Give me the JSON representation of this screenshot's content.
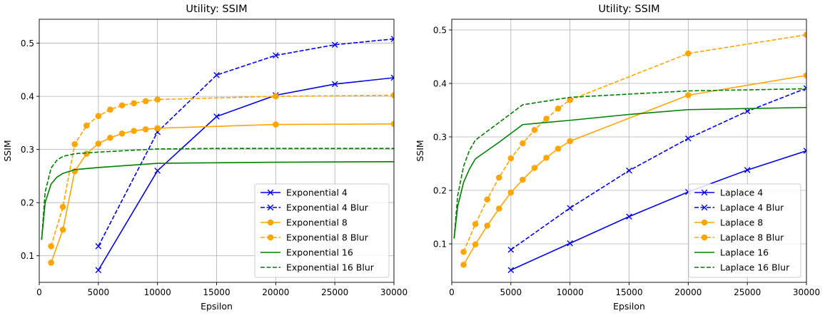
{
  "chart_data": [
    {
      "type": "line",
      "title": "Utility: SSIM",
      "xlabel": "Epsilon",
      "ylabel": "SSIM",
      "xlim": [
        0,
        30000
      ],
      "ylim": [
        0.05,
        0.545
      ],
      "xticks": [
        0,
        5000,
        10000,
        15000,
        20000,
        25000,
        30000
      ],
      "yticks": [
        0.1,
        0.2,
        0.3,
        0.4,
        0.5
      ],
      "grid": true,
      "legend_position": "lower-right",
      "series": [
        {
          "name": "Exponential 4",
          "color": "#0000ee",
          "dash": false,
          "marker": "x",
          "x": [
            5000,
            10000,
            15000,
            20000,
            25000,
            30000
          ],
          "y": [
            0.073,
            0.26,
            0.362,
            0.402,
            0.423,
            0.435
          ]
        },
        {
          "name": "Exponential 4 Blur",
          "color": "#0000ee",
          "dash": true,
          "marker": "x",
          "x": [
            5000,
            10000,
            15000,
            20000,
            25000,
            30000
          ],
          "y": [
            0.118,
            0.333,
            0.44,
            0.477,
            0.497,
            0.508
          ]
        },
        {
          "name": "Exponential 8",
          "color": "#ffa500",
          "dash": false,
          "marker": "o",
          "x": [
            1000,
            2000,
            3000,
            4000,
            5000,
            6000,
            7000,
            8000,
            9000,
            10000,
            20000,
            30000
          ],
          "y": [
            0.087,
            0.149,
            0.259,
            0.292,
            0.311,
            0.322,
            0.33,
            0.335,
            0.338,
            0.34,
            0.347,
            0.348
          ]
        },
        {
          "name": "Exponential 8 Blur",
          "color": "#ffa500",
          "dash": true,
          "marker": "o",
          "x": [
            1000,
            2000,
            3000,
            4000,
            5000,
            6000,
            7000,
            8000,
            9000,
            10000,
            20000,
            30000
          ],
          "y": [
            0.118,
            0.192,
            0.31,
            0.345,
            0.363,
            0.375,
            0.383,
            0.387,
            0.391,
            0.394,
            0.4,
            0.402
          ]
        },
        {
          "name": "Exponential 16",
          "color": "#008000",
          "dash": false,
          "marker": "none",
          "x": [
            200,
            500,
            1000,
            1500,
            2000,
            3000,
            5000,
            10000,
            15000,
            20000,
            30000
          ],
          "y": [
            0.13,
            0.2,
            0.235,
            0.248,
            0.255,
            0.262,
            0.266,
            0.274,
            0.275,
            0.276,
            0.277
          ]
        },
        {
          "name": "Exponential 16 Blur",
          "color": "#008000",
          "dash": true,
          "marker": "none",
          "x": [
            200,
            500,
            1000,
            1500,
            2000,
            3000,
            5000,
            10000,
            15000,
            20000,
            30000
          ],
          "y": [
            0.13,
            0.22,
            0.265,
            0.28,
            0.287,
            0.292,
            0.295,
            0.301,
            0.302,
            0.302,
            0.302
          ]
        }
      ]
    },
    {
      "type": "line",
      "title": "Utility: SSIM",
      "xlabel": "Epsilon",
      "ylabel": "SSIM",
      "xlim": [
        0,
        30000
      ],
      "ylim": [
        0.028,
        0.52
      ],
      "xticks": [
        0,
        5000,
        10000,
        15000,
        20000,
        25000,
        30000
      ],
      "yticks": [
        0.1,
        0.2,
        0.3,
        0.4,
        0.5
      ],
      "grid": true,
      "legend_position": "lower-right",
      "series": [
        {
          "name": "Laplace 4",
          "color": "#0000ee",
          "dash": false,
          "marker": "x",
          "x": [
            5000,
            10000,
            15000,
            20000,
            25000,
            30000
          ],
          "y": [
            0.051,
            0.101,
            0.151,
            0.197,
            0.238,
            0.274
          ]
        },
        {
          "name": "Laplace 4 Blur",
          "color": "#0000ee",
          "dash": true,
          "marker": "x",
          "x": [
            5000,
            10000,
            15000,
            20000,
            25000,
            30000
          ],
          "y": [
            0.089,
            0.167,
            0.237,
            0.297,
            0.348,
            0.391
          ]
        },
        {
          "name": "Laplace 8",
          "color": "#ffa500",
          "dash": false,
          "marker": "o",
          "x": [
            1000,
            2000,
            3000,
            4000,
            5000,
            6000,
            7000,
            8000,
            9000,
            10000,
            20000,
            30000
          ],
          "y": [
            0.061,
            0.099,
            0.134,
            0.166,
            0.196,
            0.22,
            0.242,
            0.261,
            0.278,
            0.292,
            0.378,
            0.415
          ]
        },
        {
          "name": "Laplace 8 Blur",
          "color": "#ffa500",
          "dash": true,
          "marker": "o",
          "x": [
            1000,
            2000,
            3000,
            4000,
            5000,
            6000,
            7000,
            8000,
            9000,
            10000,
            20000,
            30000
          ],
          "y": [
            0.085,
            0.137,
            0.183,
            0.224,
            0.26,
            0.288,
            0.313,
            0.334,
            0.353,
            0.369,
            0.456,
            0.491
          ]
        },
        {
          "name": "Laplace 16",
          "color": "#008000",
          "dash": false,
          "marker": "none",
          "x": [
            200,
            500,
            1000,
            1500,
            2000,
            4000,
            6000,
            10000,
            15000,
            20000,
            30000
          ],
          "y": [
            0.11,
            0.17,
            0.215,
            0.24,
            0.259,
            0.29,
            0.323,
            0.331,
            0.342,
            0.351,
            0.355
          ]
        },
        {
          "name": "Laplace 16 Blur",
          "color": "#008000",
          "dash": true,
          "marker": "none",
          "x": [
            200,
            500,
            1000,
            1500,
            2000,
            4000,
            6000,
            10000,
            15000,
            20000,
            30000
          ],
          "y": [
            0.11,
            0.19,
            0.245,
            0.275,
            0.294,
            0.327,
            0.36,
            0.374,
            0.38,
            0.386,
            0.39
          ]
        }
      ]
    }
  ]
}
